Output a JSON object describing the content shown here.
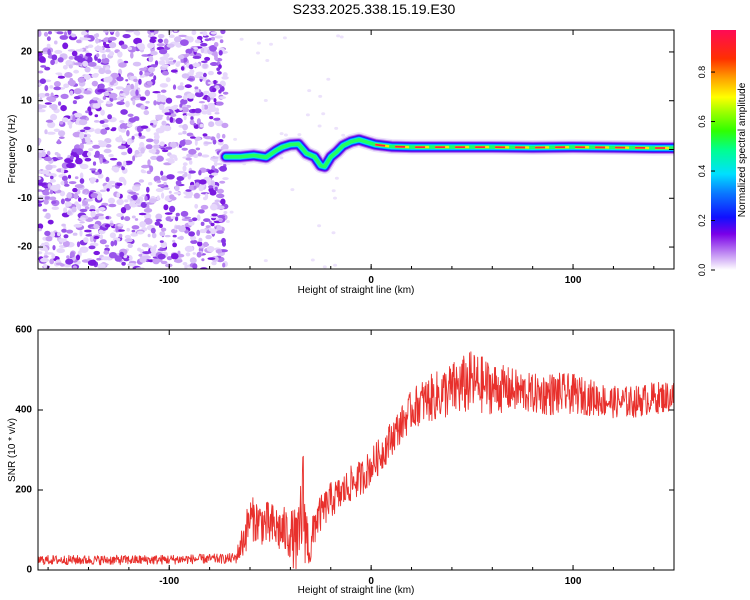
{
  "figure_title": "S233.2025.338.15.19.E30",
  "colors": {
    "snr_line": "#e8302c",
    "background": "#ffffff",
    "axis": "#000000"
  },
  "chart_data": [
    {
      "type": "heatmap",
      "name": "spectrogram",
      "title": "S233.2025.338.15.19.E30",
      "xlabel": "Height of straight line (km)",
      "ylabel": "Frequency (Hz)",
      "xlim": [
        -165,
        150
      ],
      "ylim": [
        -24.5,
        24.5
      ],
      "xticks": [
        -100,
        0,
        100
      ],
      "yticks": [
        -20,
        -10,
        0,
        10,
        20
      ],
      "xtick_labels": [
        "-100",
        "0",
        "100"
      ],
      "ytick_labels": [
        "-20",
        "-10",
        "0",
        "10",
        "20"
      ],
      "noise_region_x": [
        -165,
        -72
      ],
      "ridge": {
        "x": [
          -72,
          -65,
          -58,
          -52,
          -47,
          -44,
          -40,
          -36,
          -32,
          -28,
          -25,
          -23,
          -20,
          -17,
          -14,
          -10,
          -6,
          -2,
          2,
          6,
          10,
          20,
          40,
          60,
          80,
          100,
          120,
          140,
          150
        ],
        "y": [
          -1.5,
          -1.5,
          -1.2,
          -1.6,
          -0.2,
          0.5,
          1.0,
          1.1,
          -0.8,
          -1.5,
          -3.3,
          -3.5,
          -1.5,
          -0.5,
          0.8,
          1.6,
          2.0,
          1.5,
          1.0,
          0.8,
          0.6,
          0.5,
          0.5,
          0.5,
          0.4,
          0.5,
          0.4,
          0.3,
          0.3
        ]
      },
      "colorbar": {
        "label": "Normalized spectral amplitude",
        "range": [
          0,
          0.97
        ],
        "ticks": [
          0.0,
          0.2,
          0.4,
          0.6,
          0.8
        ],
        "tick_labels": [
          "0.0",
          "0.2",
          "0.4",
          "0.6",
          "0.8"
        ]
      }
    },
    {
      "type": "line",
      "name": "snr",
      "xlabel": "Height of straight line (km)",
      "ylabel": "SNR (10 * v/v)",
      "xlim": [
        -165,
        150
      ],
      "ylim": [
        0,
        600
      ],
      "xticks": [
        -100,
        0,
        100
      ],
      "yticks": [
        0,
        200,
        400,
        600
      ],
      "xtick_labels": [
        "-100",
        "0",
        "100"
      ],
      "ytick_labels": [
        "0",
        "200",
        "400",
        "600"
      ],
      "series": [
        {
          "name": "SNR",
          "x": [
            -165,
            -140,
            -120,
            -100,
            -80,
            -72,
            -67,
            -63,
            -60,
            -55,
            -50,
            -45,
            -40,
            -36,
            -34,
            -32,
            -30,
            -28,
            -25,
            -20,
            -15,
            -10,
            -5,
            0,
            5,
            10,
            15,
            20,
            25,
            30,
            40,
            50,
            60,
            70,
            80,
            90,
            100,
            110,
            120,
            130,
            140,
            150
          ],
          "mean": [
            25,
            25,
            25,
            26,
            28,
            28,
            30,
            80,
            130,
            120,
            110,
            100,
            90,
            60,
            180,
            90,
            40,
            120,
            140,
            175,
            190,
            215,
            230,
            260,
            290,
            330,
            365,
            400,
            420,
            430,
            450,
            470,
            455,
            450,
            440,
            440,
            440,
            430,
            420,
            420,
            430,
            435
          ],
          "amplitude": [
            12,
            12,
            12,
            12,
            12,
            12,
            14,
            50,
            55,
            55,
            60,
            60,
            65,
            90,
            160,
            80,
            40,
            60,
            45,
            45,
            45,
            45,
            45,
            45,
            45,
            45,
            45,
            50,
            55,
            60,
            70,
            80,
            65,
            55,
            50,
            55,
            50,
            45,
            40,
            40,
            40,
            40
          ]
        }
      ]
    }
  ]
}
